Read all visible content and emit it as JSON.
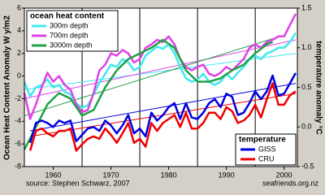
{
  "chart_data": {
    "type": "line",
    "ylabel": "Ocean Heat Content Anomaly  W y/m2",
    "y2label": "temperature anomaly °C",
    "source": "source: Stephen Schwarz, 2007",
    "credit": "seafriends.org.nz",
    "legend_titles": {
      "y": "ocean heat content",
      "y2": "temperature"
    },
    "legend_corners": {
      "y": "top-left",
      "y2": "bottom-right"
    },
    "xlim": [
      1955,
      2002.3
    ],
    "xticks": [
      1960,
      1970,
      1980,
      1990,
      2000
    ],
    "x_grid": [
      1965,
      1975,
      1985,
      1995
    ],
    "ylim": [
      -8,
      6
    ],
    "yticks": [
      -8,
      -6,
      -4,
      -2,
      0,
      2,
      4,
      6
    ],
    "y2lim": [
      -0.5,
      1.5
    ],
    "y2ticks": [
      -0.5,
      {
        "value": 0,
        "label": "0.0"
      },
      0.5,
      {
        "value": 1,
        "label": "1.0"
      },
      1.5
    ],
    "series": [
      {
        "name": "300m depth",
        "color": "#40e8f0",
        "axis": "y",
        "x": [
          1955,
          1956,
          1957,
          1958,
          1959,
          1960,
          1961,
          1962,
          1963,
          1964,
          1965,
          1966,
          1967,
          1968,
          1969,
          1970,
          1971,
          1972,
          1973,
          1974,
          1975,
          1976,
          1977,
          1978,
          1979,
          1980,
          1981,
          1982,
          1983,
          1984,
          1985,
          1986,
          1987,
          1988,
          1989,
          1990,
          1991,
          1992,
          1993,
          1994,
          1995,
          1996,
          1997,
          1998,
          1999,
          2000,
          2001,
          2002
        ],
        "values": [
          -0.5,
          -1.8,
          -1.0,
          -0.8,
          -0.3,
          -1.0,
          -0.8,
          -1.4,
          -1.6,
          -2.4,
          -2.8,
          -2.6,
          -1.6,
          -0.6,
          0.2,
          1.0,
          0.8,
          1.5,
          1.2,
          0.5,
          0.8,
          1.8,
          2.2,
          2.6,
          2.4,
          2.8,
          2.0,
          0.8,
          -0.2,
          -0.5,
          -0.3,
          0.2,
          -0.5,
          -0.8,
          -0.5,
          0.2,
          -0.3,
          0.3,
          0.8,
          1.5,
          1.8,
          1.5,
          2.0,
          2.2,
          2.5,
          2.5,
          3.0,
          3.8
        ]
      },
      {
        "name": "700m depth",
        "color": "#e040e8",
        "axis": "y",
        "x": [
          1955,
          1956,
          1957,
          1958,
          1959,
          1960,
          1961,
          1962,
          1963,
          1964,
          1965,
          1966,
          1967,
          1968,
          1969,
          1970,
          1971,
          1972,
          1973,
          1974,
          1975,
          1976,
          1977,
          1978,
          1979,
          1980,
          1981,
          1982,
          1983,
          1984,
          1985,
          1986,
          1987,
          1988,
          1989,
          1990,
          1991,
          1992,
          1993,
          1994,
          1995,
          1996,
          1997,
          1998,
          1999,
          2000,
          2001,
          2002
        ],
        "values": [
          -1.5,
          -3.8,
          -2.5,
          -1.0,
          0.3,
          -0.5,
          0.0,
          -0.8,
          -1.2,
          -2.5,
          -3.2,
          -3.0,
          -1.5,
          0.5,
          1.0,
          2.0,
          1.8,
          2.3,
          2.0,
          1.2,
          1.5,
          2.5,
          2.8,
          3.2,
          3.0,
          3.5,
          2.8,
          1.5,
          0.8,
          0.5,
          0.8,
          1.0,
          0.2,
          0.0,
          0.3,
          0.8,
          0.5,
          1.0,
          1.5,
          2.5,
          2.8,
          2.5,
          3.0,
          3.2,
          3.5,
          3.5,
          4.5,
          5.5
        ]
      },
      {
        "name": "3000m depth",
        "color": "#20a048",
        "axis": "y",
        "x": [
          1955,
          1957,
          1959,
          1961,
          1963,
          1965,
          1967,
          1969,
          1971,
          1973,
          1975,
          1977,
          1979,
          1981,
          1983,
          1985,
          1987,
          1989,
          1991,
          1993,
          1995,
          1997,
          1998
        ],
        "values": [
          -6.5,
          -4.5,
          -2.5,
          -1.5,
          -2.0,
          -3.5,
          -3.0,
          -1.0,
          0.5,
          1.5,
          2.0,
          2.5,
          3.2,
          2.5,
          0.5,
          -0.5,
          -0.5,
          -0.2,
          0.5,
          1.0,
          2.0,
          2.8,
          3.0
        ]
      },
      {
        "name": "GISS",
        "color": "#0000e0",
        "axis": "y2",
        "x": [
          1956,
          1957,
          1958,
          1959,
          1960,
          1961,
          1962,
          1963,
          1964,
          1965,
          1966,
          1967,
          1968,
          1969,
          1970,
          1971,
          1972,
          1973,
          1974,
          1975,
          1976,
          1977,
          1978,
          1979,
          1980,
          1981,
          1982,
          1983,
          1984,
          1985,
          1986,
          1987,
          1988,
          1989,
          1990,
          1991,
          1992,
          1993,
          1994,
          1995,
          1996,
          1997,
          1998,
          1999,
          2000,
          2001,
          2002
        ],
        "values": [
          -0.2,
          0.05,
          0.08,
          0.05,
          0,
          0.08,
          0.05,
          0.08,
          -0.18,
          -0.1,
          -0.02,
          0,
          -0.05,
          0.08,
          0.02,
          -0.08,
          0.02,
          0.15,
          -0.08,
          -0.02,
          -0.12,
          0.18,
          0.08,
          0.15,
          0.25,
          0.3,
          0.1,
          0.3,
          0.12,
          0.1,
          0.18,
          0.3,
          0.35,
          0.25,
          0.42,
          0.38,
          0.15,
          0.18,
          0.3,
          0.45,
          0.35,
          0.45,
          0.65,
          0.4,
          0.42,
          0.55,
          0.68
        ]
      },
      {
        "name": "CRU",
        "color": "#f00000",
        "axis": "y2",
        "x": [
          1956,
          1957,
          1958,
          1959,
          1960,
          1961,
          1962,
          1963,
          1964,
          1965,
          1966,
          1967,
          1968,
          1969,
          1970,
          1971,
          1972,
          1973,
          1974,
          1975,
          1976,
          1977,
          1978,
          1979,
          1980,
          1981,
          1982,
          1983,
          1984,
          1985,
          1986,
          1987,
          1988,
          1989,
          1990,
          1991,
          1992,
          1993,
          1994,
          1995,
          1996,
          1997,
          1998,
          1999,
          2000,
          2001,
          2002
        ],
        "values": [
          -0.3,
          -0.05,
          -0.02,
          -0.08,
          -0.12,
          -0.05,
          -0.05,
          -0.02,
          -0.3,
          -0.22,
          -0.15,
          -0.12,
          -0.15,
          -0.02,
          -0.1,
          -0.2,
          -0.08,
          0.05,
          -0.2,
          -0.15,
          -0.25,
          0.05,
          -0.05,
          0.05,
          0.1,
          0.15,
          0,
          0.18,
          -0.02,
          -0.02,
          0.05,
          0.18,
          0.18,
          0.1,
          0.25,
          0.2,
          0.05,
          0.08,
          0.15,
          0.28,
          0.12,
          0.35,
          0.55,
          0.28,
          0.28,
          0.4,
          0.45
        ]
      }
    ],
    "trend_lines": [
      {
        "color": "#40e8f0",
        "axis": "y",
        "x": [
          1955,
          2002
        ],
        "values": [
          -1.2,
          2.0
        ]
      },
      {
        "color": "#e040e8",
        "axis": "y",
        "x": [
          1955,
          2002
        ],
        "values": [
          -2.0,
          3.2
        ]
      },
      {
        "color": "#20a048",
        "axis": "y",
        "x": [
          1955,
          1998
        ],
        "values": [
          -3.5,
          3.3
        ]
      },
      {
        "color": "#0000e0",
        "axis": "y2",
        "x": [
          1956,
          2002
        ],
        "values": [
          -0.05,
          0.55
        ]
      },
      {
        "color": "#f00000",
        "axis": "y2",
        "x": [
          1956,
          2002
        ],
        "values": [
          -0.12,
          0.42
        ]
      }
    ]
  }
}
